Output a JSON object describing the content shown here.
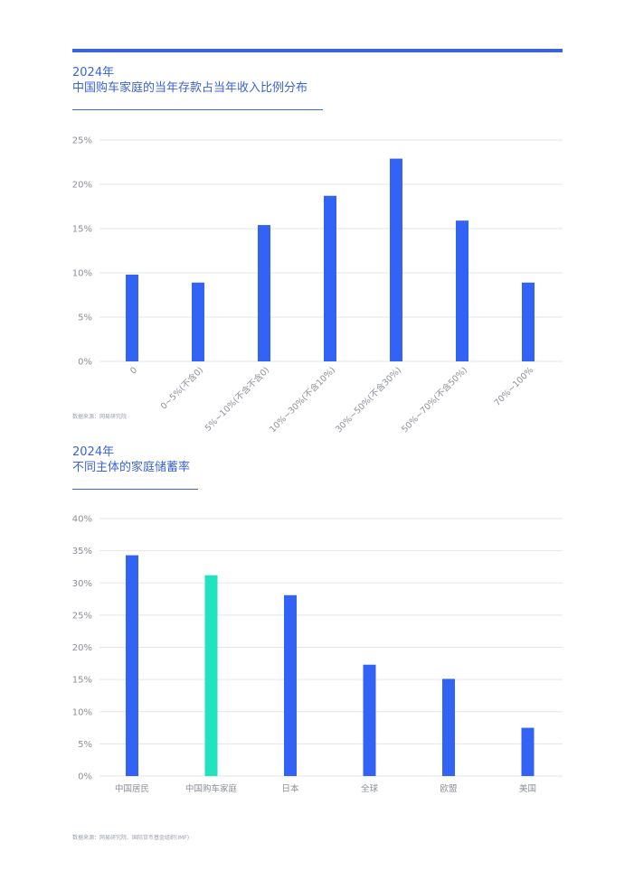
{
  "charts": [
    {
      "year": "2024年",
      "subtitle": "中国购车家庭的当年存款占当年收入比例分布",
      "source": "数据来源：网易研究院",
      "chart_data": {
        "type": "bar",
        "title": "中国购车家庭的当年存款占当年收入比例分布",
        "categories": [
          "0",
          "0~5%(不含0)",
          "5%~10%(不含不含0)",
          "10%~30%(不含10%)",
          "30%~50%(不含30%)",
          "50%~70%(不含50%)",
          "70%~100%"
        ],
        "values": [
          9.8,
          8.9,
          15.4,
          18.7,
          22.9,
          15.9,
          8.9
        ],
        "ylim": [
          0,
          25
        ],
        "yticks": [
          "0%",
          "5%",
          "10%",
          "15%",
          "20%",
          "25%"
        ],
        "bar_color": "#3263f4",
        "grid": true
      }
    },
    {
      "year": "2024年",
      "subtitle": "不同主体的家庭储蓄率",
      "source": "数据来源：网易研究院、国际货币基金组织(IMF)",
      "chart_data": {
        "type": "bar",
        "title": "不同主体的家庭储蓄率",
        "categories": [
          "中国居民",
          "中国购车家庭",
          "日本",
          "全球",
          "欧盟",
          "美国"
        ],
        "values": [
          34.3,
          31.2,
          28.1,
          17.3,
          15.1,
          7.5
        ],
        "ylim": [
          0,
          40
        ],
        "yticks": [
          "0%",
          "5%",
          "10%",
          "15%",
          "20%",
          "25%",
          "30%",
          "35%",
          "40%"
        ],
        "bar_color": "#3263f4",
        "highlight_color": "#22e3c0",
        "highlight_index": 1,
        "grid": true
      }
    }
  ]
}
